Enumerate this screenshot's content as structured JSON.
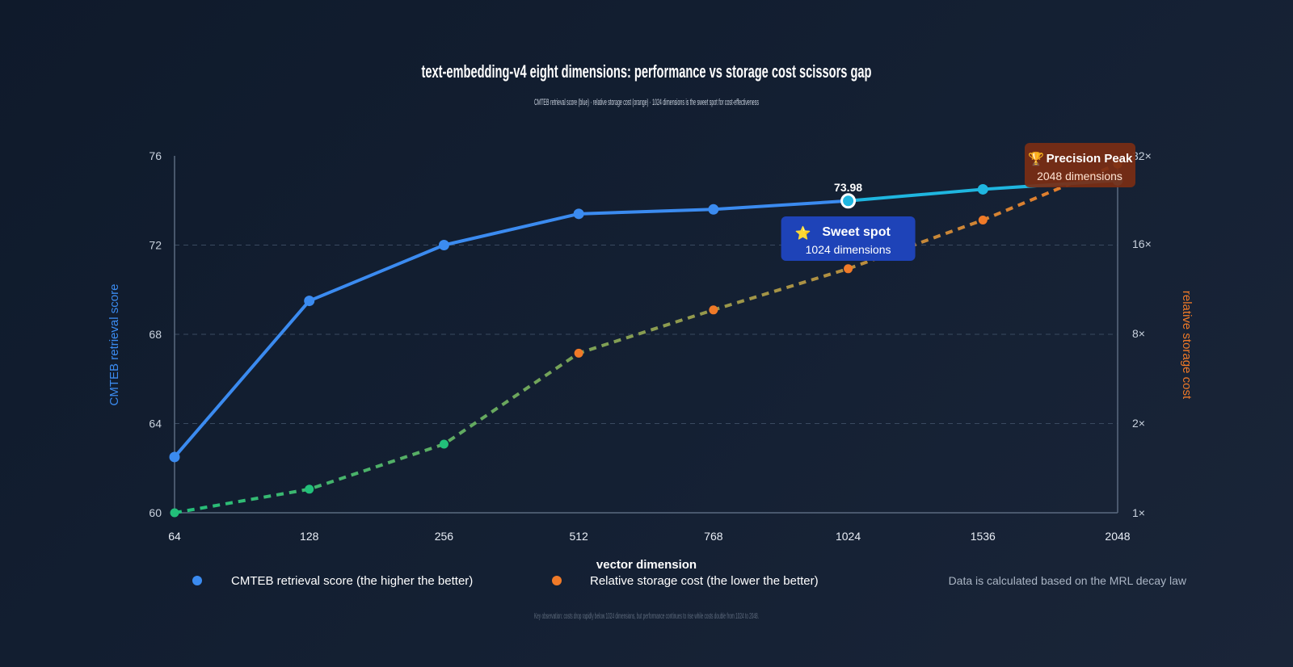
{
  "title": "text-embedding-v4 eight dimensions: performance vs storage cost scissors gap",
  "subtitle": "CMTEB retrieval score (blue) · relative storage cost (orange) · 1024 dimensions is the sweet spot for cost-effectiveness",
  "footnote": "Key observation: costs drop rapidly below 1024 dimensions, but performance continues to rise while costs double from 1024 to 2048.",
  "source_note": "Data is calculated based on the MRL decay law",
  "colors": {
    "score": "#3b8bf0",
    "score_highlight": "#1fb6e0",
    "cost_low": "#22c07a",
    "cost_high": "#f07a28",
    "sweet_spot_box": "#1e43b8",
    "peak_box": "#7a2d14",
    "grid": "#3a4a60",
    "axis": "#5b6b80"
  },
  "chart_data": {
    "type": "line",
    "x": [
      "64",
      "128",
      "256",
      "512",
      "768",
      "1024",
      "1536",
      "2048"
    ],
    "xlabel": "vector dimension",
    "ylabel_left": "CMTEB retrieval score",
    "ylabel_right": "relative storage cost",
    "ylim_left": [
      60,
      76
    ],
    "yticks_left": [
      "60",
      "64",
      "68",
      "72",
      "76"
    ],
    "yticks_right": [
      "1×",
      "2×",
      "8×",
      "16×",
      "32×"
    ],
    "grid": true,
    "legend_position": "bottom",
    "series": [
      {
        "name": "CMTEB retrieval score (the higher the better)",
        "axis": "left",
        "style": "solid",
        "values": [
          62.5,
          69.5,
          72.0,
          73.4,
          73.6,
          73.98,
          74.5,
          74.9
        ]
      },
      {
        "name": "Relative storage cost (the lower the better)",
        "axis": "right",
        "style": "dashed",
        "values": [
          1,
          1.2,
          1.7,
          5.9,
          9.6,
          13.2,
          19.3,
          30
        ]
      }
    ],
    "annotations": [
      {
        "x": "1024",
        "value_label": "73.98",
        "title": "Sweet spot",
        "subtitle": "1024 dimensions",
        "icon": "star-icon",
        "glyph": "⭐"
      },
      {
        "x": "2048",
        "title": "Precision Peak",
        "subtitle": "2048 dimensions",
        "icon": "trophy-icon",
        "glyph": "🏆"
      }
    ]
  }
}
